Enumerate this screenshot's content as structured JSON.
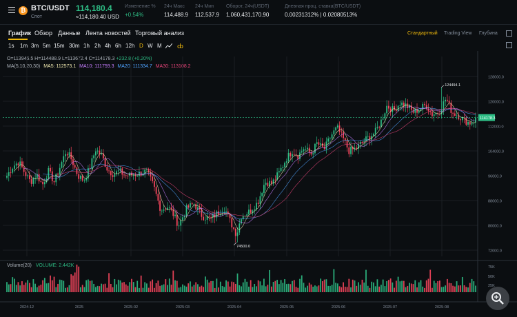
{
  "header": {
    "pair": "BTC/USDT",
    "market": "Спот",
    "price": "114,180.4",
    "price_usd": "≈114,180.40 USD",
    "change_label": "Изменение %",
    "change_value": "+0.54%",
    "high_label": "24ч Макс",
    "high_value": "114,488.9",
    "low_label": "24ч Мин",
    "low_value": "112,537.9",
    "turnover_label": "Оборот, 24ч(USDT)",
    "turnover_value": "1,060,431,170.90",
    "rate_label": "Дневная проц. ставка(BTC/USDT)",
    "rate_value": "0.00231312% | 0.02080513%"
  },
  "tabs": [
    "График",
    "Обзор",
    "Данные",
    "Лента новостей",
    "Торговый анализ"
  ],
  "views": [
    "Стандартный",
    "Trading View",
    "Глубина"
  ],
  "intervals": [
    "1s",
    "1m",
    "3m",
    "5m",
    "15m",
    "30m",
    "1h",
    "2h",
    "4h",
    "6h",
    "12h",
    "D",
    "W",
    "M"
  ],
  "active_interval": "D",
  "legend": {
    "ohlc_o": "O=113945.5",
    "ohlc_h": "H=114488.9",
    "ohlc_l": "L=113672.4",
    "ohlc_c": "C=114178.3",
    "ohlc_chg": "+232.8 (+0.20%)",
    "ma_label": "MA(5,10,20,30)",
    "ma5": "MA5: 112573.1",
    "ma10": "MA10: 111759.3",
    "ma20": "MA20: 111334.7",
    "ma30": "MA30: 113108.2"
  },
  "volume_legend": {
    "label": "Volume(20)",
    "value": "VOLUME: 2.442K"
  },
  "annotations": {
    "high": "124494.1",
    "low": "74500.0",
    "current_price_tag": "114178.3"
  },
  "colors": {
    "up": "#2ebd85",
    "down": "#f6465d",
    "ma5": "#f0e9b0",
    "ma10": "#c77dff",
    "ma20": "#4fa3ff",
    "ma30": "#e8457a",
    "accent": "#f0b90b"
  },
  "chart_data": {
    "type": "candlestick",
    "y_ticks": [
      "128000.0",
      "120000.0",
      "112000.0",
      "104000.0",
      "96000.0",
      "88000.0",
      "80000.0",
      "72000.0"
    ],
    "ylim": [
      70000,
      130000
    ],
    "x_ticks": [
      "2024-12",
      "2025",
      "2025-02",
      "2025-03",
      "2025-04",
      "2025-05",
      "2025-06",
      "2025-07",
      "2025-08"
    ],
    "volume_ticks": [
      "75K",
      "50K",
      "25K"
    ],
    "close_anchors": [
      [
        0,
        96000
      ],
      [
        5,
        99000
      ],
      [
        10,
        100500
      ],
      [
        15,
        97000
      ],
      [
        20,
        94000
      ],
      [
        25,
        96500
      ],
      [
        30,
        93000
      ],
      [
        35,
        97500
      ],
      [
        40,
        94000
      ],
      [
        45,
        99000
      ],
      [
        50,
        104000
      ],
      [
        55,
        101000
      ],
      [
        60,
        96000
      ],
      [
        65,
        94500
      ],
      [
        70,
        98500
      ],
      [
        75,
        104500
      ],
      [
        80,
        102500
      ],
      [
        85,
        98000
      ],
      [
        90,
        96500
      ],
      [
        95,
        97500
      ],
      [
        100,
        96000
      ],
      [
        110,
        96500
      ],
      [
        118,
        97500
      ],
      [
        124,
        92500
      ],
      [
        130,
        85000
      ],
      [
        136,
        86000
      ],
      [
        140,
        84000
      ],
      [
        145,
        80000
      ],
      [
        152,
        85500
      ],
      [
        158,
        87000
      ],
      [
        165,
        83000
      ],
      [
        172,
        82000
      ],
      [
        178,
        84000
      ],
      [
        184,
        85500
      ],
      [
        189,
        81000
      ],
      [
        194,
        77000
      ],
      [
        198,
        83000
      ],
      [
        205,
        84500
      ],
      [
        212,
        87500
      ],
      [
        218,
        94000
      ],
      [
        224,
        93500
      ],
      [
        230,
        97000
      ],
      [
        236,
        101500
      ],
      [
        241,
        104000
      ],
      [
        246,
        102500
      ],
      [
        251,
        105000
      ],
      [
        257,
        103000
      ],
      [
        262,
        106500
      ],
      [
        268,
        104500
      ],
      [
        274,
        109000
      ],
      [
        279,
        111500
      ],
      [
        284,
        108000
      ],
      [
        289,
        104000
      ],
      [
        295,
        104800
      ],
      [
        300,
        106800
      ],
      [
        306,
        108500
      ],
      [
        311,
        110000
      ],
      [
        316,
        113500
      ],
      [
        321,
        118500
      ],
      [
        327,
        117000
      ],
      [
        332,
        119500
      ],
      [
        338,
        118500
      ],
      [
        343,
        116500
      ],
      [
        349,
        117500
      ],
      [
        354,
        119000
      ],
      [
        359,
        115800
      ],
      [
        365,
        116500
      ],
      [
        371,
        121000
      ],
      [
        376,
        116500
      ],
      [
        381,
        115500
      ],
      [
        386,
        114000
      ],
      [
        391,
        113000
      ],
      [
        396,
        114200
      ]
    ],
    "high_point": {
      "x": 367,
      "y": 124494.1
    },
    "low_point": {
      "x": 194,
      "y": 74500.0
    }
  }
}
